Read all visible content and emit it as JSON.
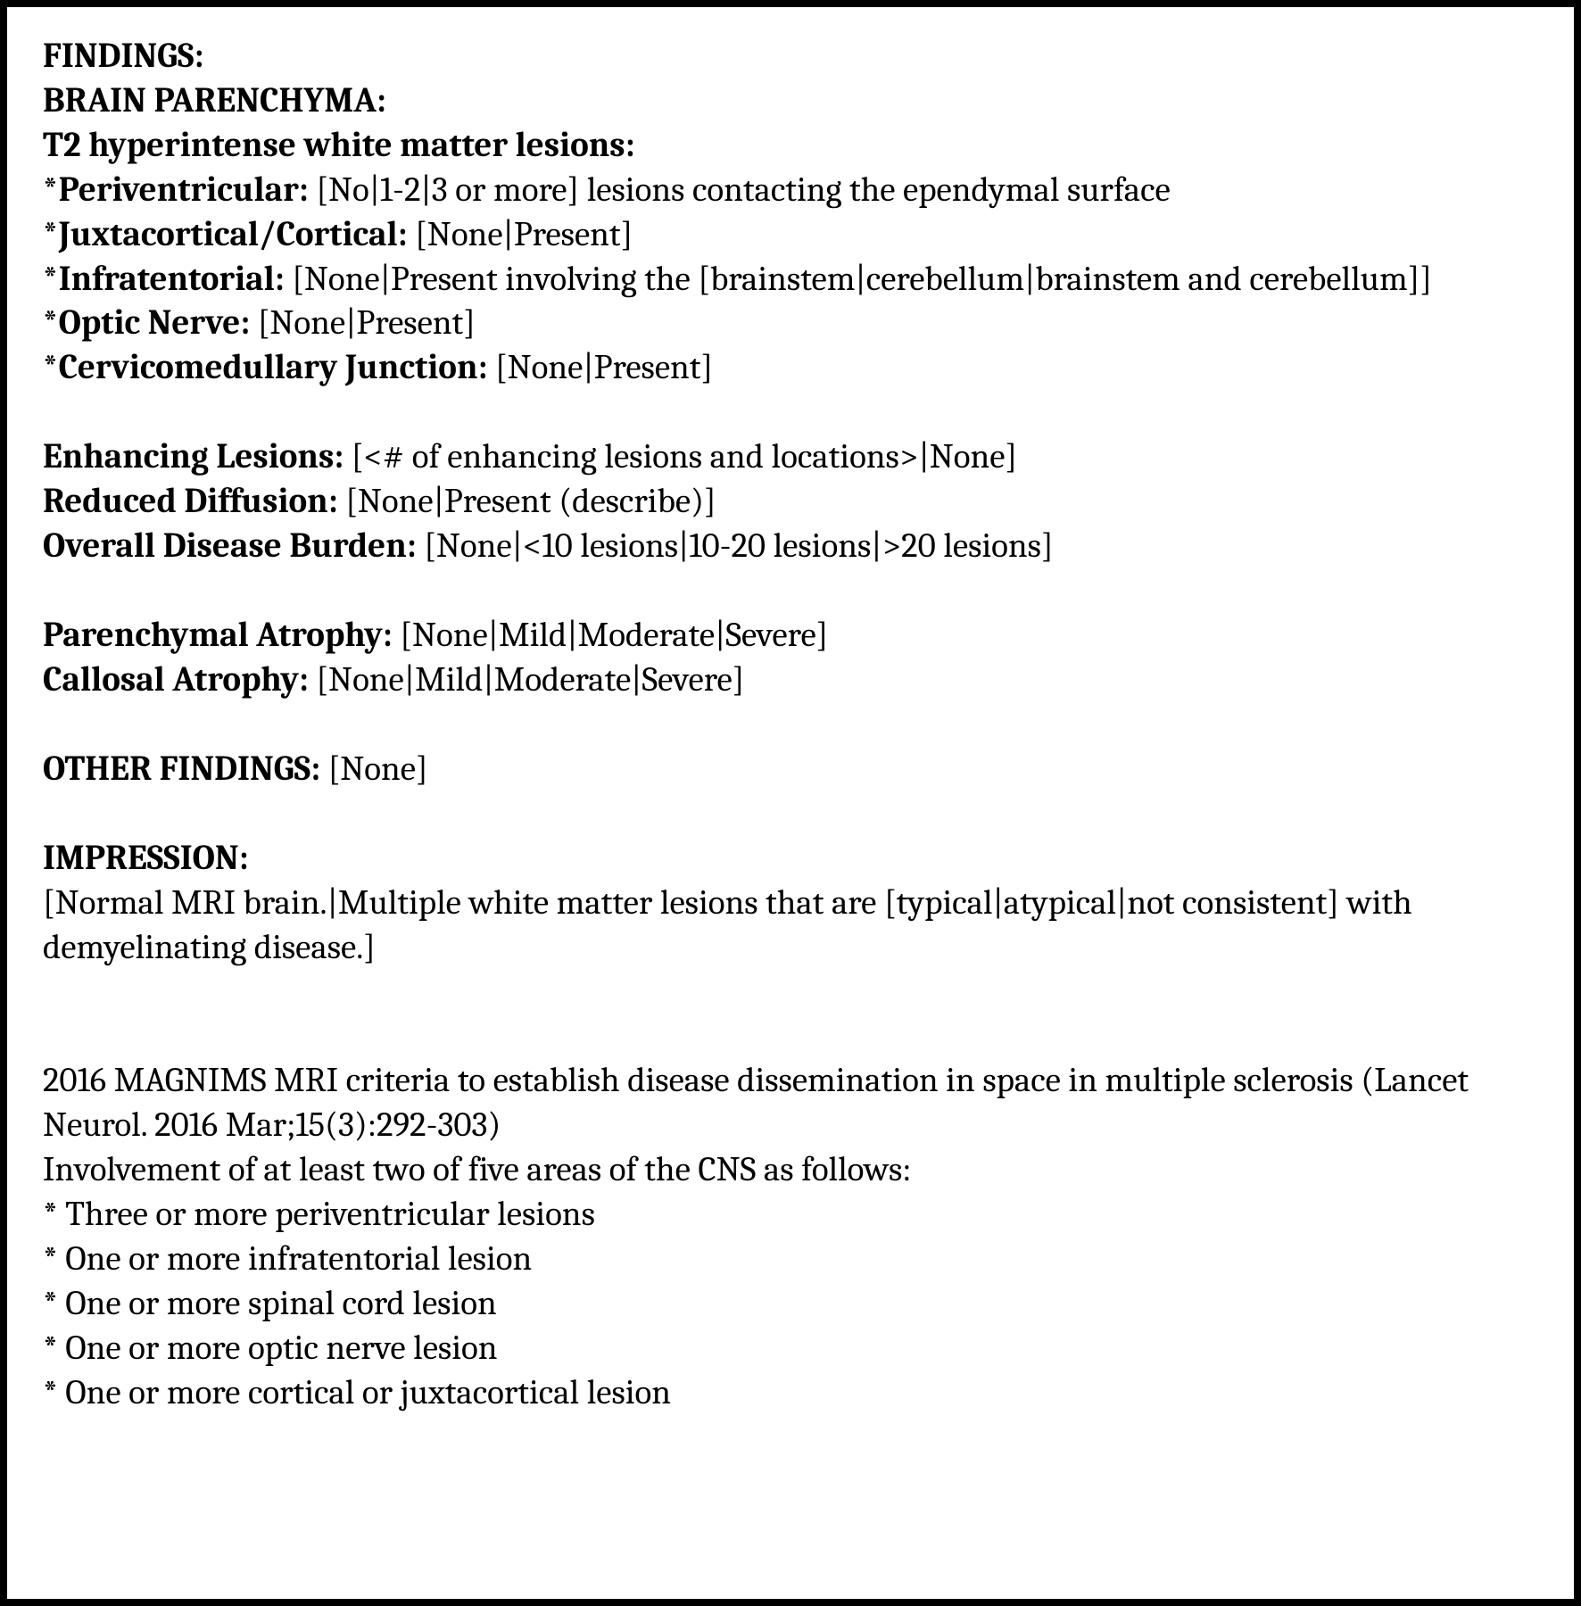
{
  "headings": {
    "findings": "FINDINGS:",
    "brain_parenchyma": "BRAIN PARENCHYMA:",
    "t2_lesions": "T2 hyperintense white matter lesions:",
    "other_findings_label": "OTHER FINDINGS:",
    "impression": "IMPRESSION:"
  },
  "t2": {
    "periventricular_label": "*Periventricular:",
    "periventricular_opts": " [No|1-2|3 or more] lesions contacting the ependymal surface",
    "juxtacortical_label": "*Juxtacortical/Cortical:",
    "juxtacortical_opts": " [None|Present]",
    "infratentorial_label": "*Infratentorial:",
    "infratentorial_opts": " [None|Present involving the [brainstem|cerebellum|brainstem and cerebellum]]",
    "optic_label": "*Optic Nerve:",
    "optic_opts": " [None|Present]",
    "cmj_label": "*Cervicomedullary Junction:",
    "cmj_opts": " [None|Present]"
  },
  "enh": {
    "label": "Enhancing Lesions:",
    "opts": " [<# of enhancing lesions and locations>|None]"
  },
  "diff": {
    "label": "Reduced Diffusion:",
    "opts": " [None|Present (describe)]"
  },
  "burden": {
    "label": "Overall Disease Burden:",
    "opts": " [None|<10 lesions|10-20 lesions|>20 lesions]"
  },
  "par_atrophy": {
    "label": "Parenchymal Atrophy:",
    "opts": " [None|Mild|Moderate|Severe]"
  },
  "cal_atrophy": {
    "label": "Callosal Atrophy:",
    "opts": " [None|Mild|Moderate|Severe]"
  },
  "other_findings_opts": " [None]",
  "impression_text": "[Normal MRI brain.|Multiple white matter lesions that are [typical|atypical|not consistent] with demyelinating disease.]",
  "magnims": {
    "title": "2016 MAGNIMS MRI criteria to establish disease dissemination in space in multiple sclerosis (Lancet Neurol. 2016 Mar;15(3):292-303)",
    "intro": "Involvement of at least two of five areas of the CNS as follows:",
    "b1": "* Three or more periventricular lesions",
    "b2": "* One or more infratentorial lesion",
    "b3": "* One or more spinal cord lesion",
    "b4": "* One or more optic nerve lesion",
    "b5": "* One or more cortical or juxtacortical lesion"
  }
}
